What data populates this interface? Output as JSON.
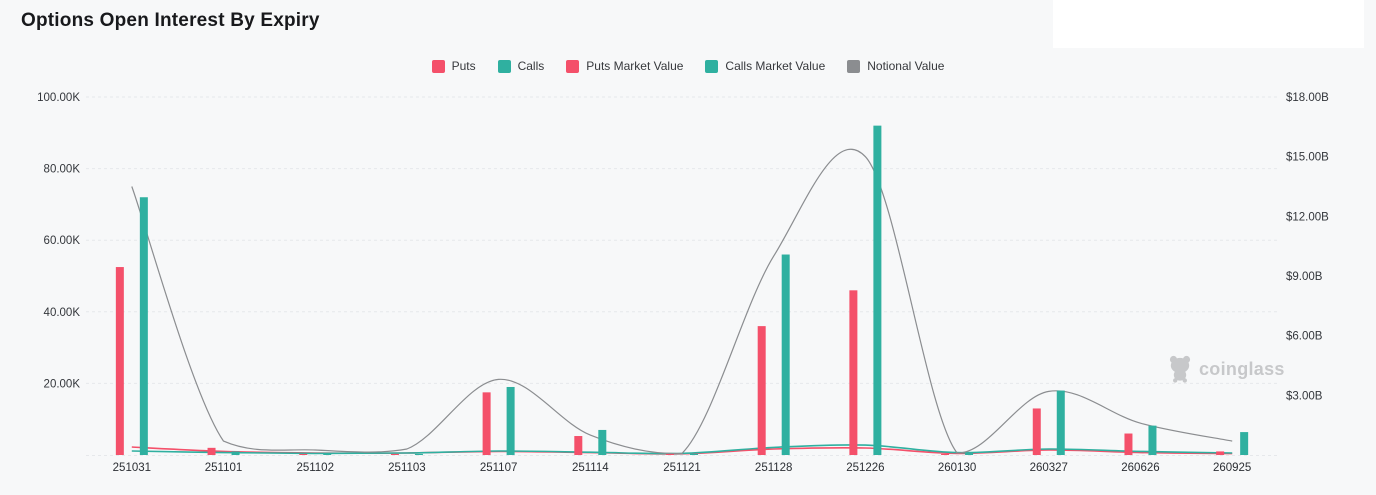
{
  "page": {
    "title": "Options Open Interest By Expiry",
    "background": "#f7f8f9"
  },
  "watermark": {
    "label": "coinglass",
    "icon": "bear-icon",
    "color": "#c7c8ca"
  },
  "colors": {
    "puts": "#f4506a",
    "calls": "#2fb0a0",
    "notional": "#8b8d90",
    "grid": "#e6e8eb",
    "axis_text": "#33363b",
    "title_text": "#18191c"
  },
  "legend": [
    {
      "label": "Puts",
      "color": "#f4506a"
    },
    {
      "label": "Calls",
      "color": "#2fb0a0"
    },
    {
      "label": "Puts Market Value",
      "color": "#f4506a"
    },
    {
      "label": "Calls Market Value",
      "color": "#2fb0a0"
    },
    {
      "label": "Notional Value",
      "color": "#8b8d90"
    }
  ],
  "chart_data": {
    "type": "bar+line",
    "title": "Options Open Interest By Expiry",
    "categories": [
      "251031",
      "251101",
      "251102",
      "251103",
      "251107",
      "251114",
      "251121",
      "251128",
      "251226",
      "260130",
      "260327",
      "260626",
      "260925"
    ],
    "series": [
      {
        "name": "Puts",
        "type": "bar",
        "axis": "left",
        "color": "#f4506a",
        "values": [
          52.5,
          2.0,
          0.3,
          0.25,
          17.5,
          5.3,
          0.15,
          36,
          46,
          0.3,
          13,
          6,
          1.0
        ]
      },
      {
        "name": "Calls",
        "type": "bar",
        "axis": "left",
        "color": "#2fb0a0",
        "values": [
          72,
          1.0,
          0.3,
          0.3,
          19,
          7,
          0.2,
          56,
          92,
          0.5,
          18,
          8.2,
          6.4
        ]
      },
      {
        "name": "Puts Market Value",
        "type": "line",
        "axis": "right",
        "color": "#f4506a",
        "values": [
          0.4,
          0.18,
          0.1,
          0.1,
          0.18,
          0.12,
          0.06,
          0.3,
          0.35,
          0.08,
          0.25,
          0.12,
          0.07
        ]
      },
      {
        "name": "Calls Market Value",
        "type": "line",
        "axis": "right",
        "color": "#2fb0a0",
        "values": [
          0.2,
          0.12,
          0.08,
          0.1,
          0.2,
          0.14,
          0.08,
          0.38,
          0.5,
          0.12,
          0.3,
          0.18,
          0.1
        ]
      },
      {
        "name": "Notional Value",
        "type": "line",
        "axis": "right",
        "color": "#8b8d90",
        "values": [
          13.5,
          0.7,
          0.25,
          0.3,
          3.8,
          1.0,
          0.08,
          10,
          15,
          0.1,
          3.2,
          1.6,
          0.7
        ]
      }
    ],
    "left_axis": {
      "unit": "open interest (contracts)",
      "max": 100,
      "ticks": [
        {
          "label": "20.00K",
          "value": 20
        },
        {
          "label": "40.00K",
          "value": 40
        },
        {
          "label": "60.00K",
          "value": 60
        },
        {
          "label": "80.00K",
          "value": 80
        },
        {
          "label": "100.00K",
          "value": 100
        }
      ]
    },
    "right_axis": {
      "unit": "USD value",
      "max": 18,
      "ticks": [
        {
          "label": "$3.00B",
          "value": 3
        },
        {
          "label": "$6.00B",
          "value": 6
        },
        {
          "label": "$9.00B",
          "value": 9
        },
        {
          "label": "$12.00B",
          "value": 12
        },
        {
          "label": "$15.00B",
          "value": 15
        },
        {
          "label": "$18.00B",
          "value": 18
        }
      ]
    },
    "grid": "horizontal-dashed",
    "legend_position": "top-center"
  }
}
